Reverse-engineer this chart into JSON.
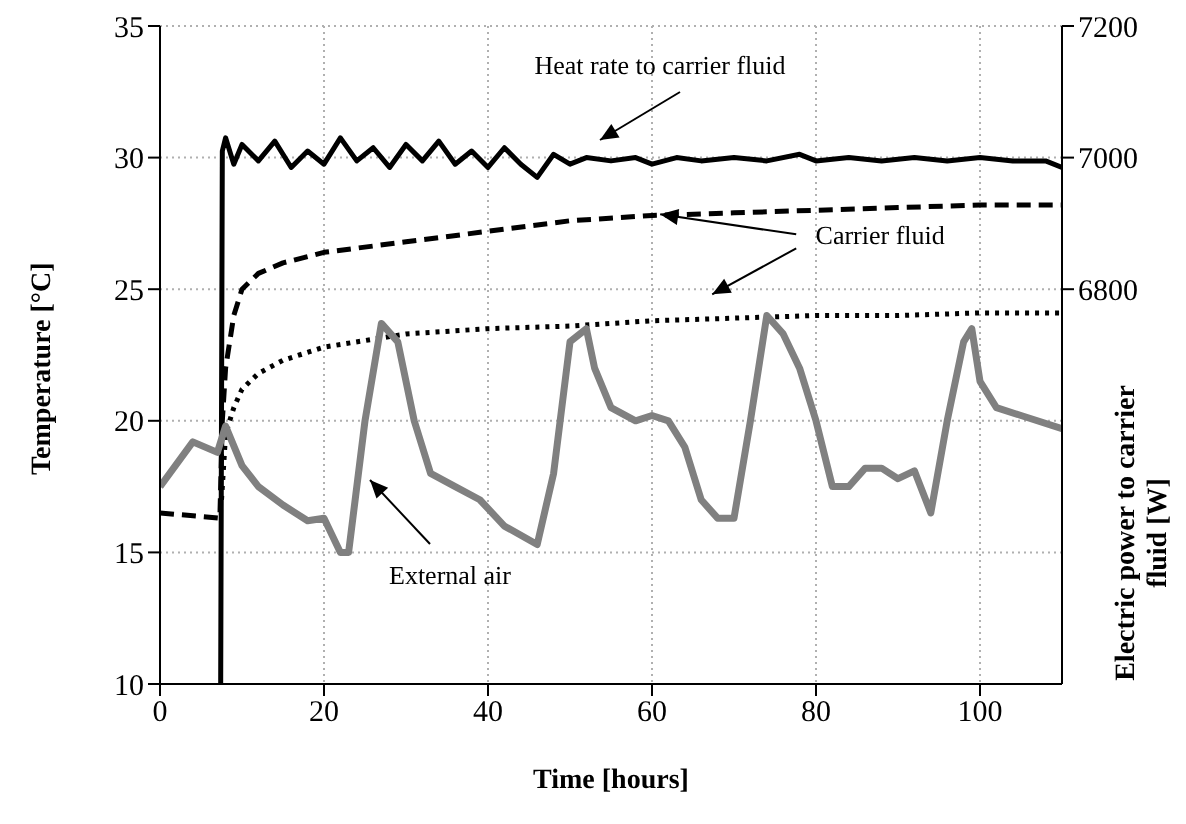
{
  "chart_data": {
    "type": "line",
    "xlabel": "Time [hours]",
    "ylabel": "Temperature [°C]",
    "y2label": "Electric power to carrier fluid [W]",
    "xlim": [
      0,
      110
    ],
    "xticks": [
      0,
      20,
      40,
      60,
      80,
      100
    ],
    "ylim": [
      10,
      35
    ],
    "yticks": [
      10,
      15,
      20,
      25,
      30,
      35
    ],
    "y2lim": [
      6200,
      7200
    ],
    "y2ticks": [
      6800,
      7000,
      7200
    ],
    "grid": true,
    "legend": false,
    "marker": "none",
    "annotations": [
      "Heat rate to carrier fluid",
      {
        "text": "Carrier fluid",
        "x": 61,
        "y": 27.8
      },
      "External air"
    ],
    "series": [
      {
        "color": "#000000",
        "axis": "y2",
        "line_style": "solid",
        "x": [
          7.4,
          7.6,
          8,
          9,
          10,
          12,
          14,
          16,
          18,
          20,
          22,
          24,
          26,
          28,
          30,
          32,
          34,
          36,
          38,
          40,
          42,
          44,
          46,
          48,
          50,
          52,
          55,
          58,
          60,
          63,
          66,
          70,
          74,
          78,
          80,
          84,
          88,
          92,
          96,
          100,
          104,
          108,
          110
        ],
        "values": [
          6200,
          7010,
          7030,
          6990,
          7020,
          6995,
          7025,
          6985,
          7010,
          6990,
          7030,
          6995,
          7015,
          6985,
          7020,
          6995,
          7025,
          6990,
          7010,
          6985,
          7015,
          6990,
          6970,
          7005,
          6990,
          7000,
          6995,
          7000,
          6990,
          7000,
          6995,
          7000,
          6995,
          7005,
          6995,
          7000,
          6995,
          7000,
          6995,
          7000,
          6995,
          6995,
          6985
        ]
      },
      {
        "color": "#000000",
        "line_style": "dashed",
        "x": [
          0,
          7.3,
          7.6,
          8,
          9,
          10,
          12,
          15,
          20,
          30,
          40,
          50,
          60,
          70,
          80,
          90,
          100,
          110
        ],
        "values": [
          16.5,
          16.3,
          20,
          22,
          24,
          25,
          25.6,
          26,
          26.4,
          26.8,
          27.2,
          27.6,
          27.8,
          27.9,
          28,
          28.1,
          28.2,
          28.2
        ]
      },
      {
        "color": "#000000",
        "line_style": "dotted",
        "x": [
          7.5,
          8,
          9,
          10,
          12,
          15,
          20,
          30,
          40,
          50,
          60,
          70,
          80,
          90,
          100,
          110
        ],
        "values": [
          17,
          19.5,
          20.5,
          21.2,
          21.8,
          22.3,
          22.8,
          23.3,
          23.5,
          23.6,
          23.8,
          23.9,
          24,
          24,
          24.1,
          24.1
        ]
      },
      {
        "color": "#808080",
        "line_style": "solid",
        "x": [
          0,
          4,
          7,
          8,
          10,
          12,
          15,
          18,
          20,
          22,
          23,
          25,
          27,
          29,
          31,
          33,
          36,
          39,
          42,
          46,
          48,
          50,
          52,
          53,
          55,
          58,
          60,
          62,
          64,
          66,
          68,
          70,
          72,
          74,
          76,
          78,
          80,
          82,
          84,
          86,
          88,
          90,
          92,
          94,
          96,
          98,
          99,
          100,
          102,
          105,
          110
        ],
        "values": [
          17.5,
          19.2,
          18.8,
          19.8,
          18.3,
          17.5,
          16.8,
          16.2,
          16.3,
          15,
          15,
          20,
          23.7,
          23,
          20,
          18,
          17.5,
          17,
          16,
          15.3,
          18,
          23,
          23.5,
          22,
          20.5,
          20,
          20.2,
          20,
          19,
          17,
          16.3,
          16.3,
          20,
          24,
          23.3,
          22,
          20,
          17.5,
          17.5,
          18.2,
          18.2,
          17.8,
          18.1,
          16.5,
          20,
          23,
          23.5,
          21.5,
          20.5,
          20.2,
          19.7
        ]
      }
    ]
  }
}
